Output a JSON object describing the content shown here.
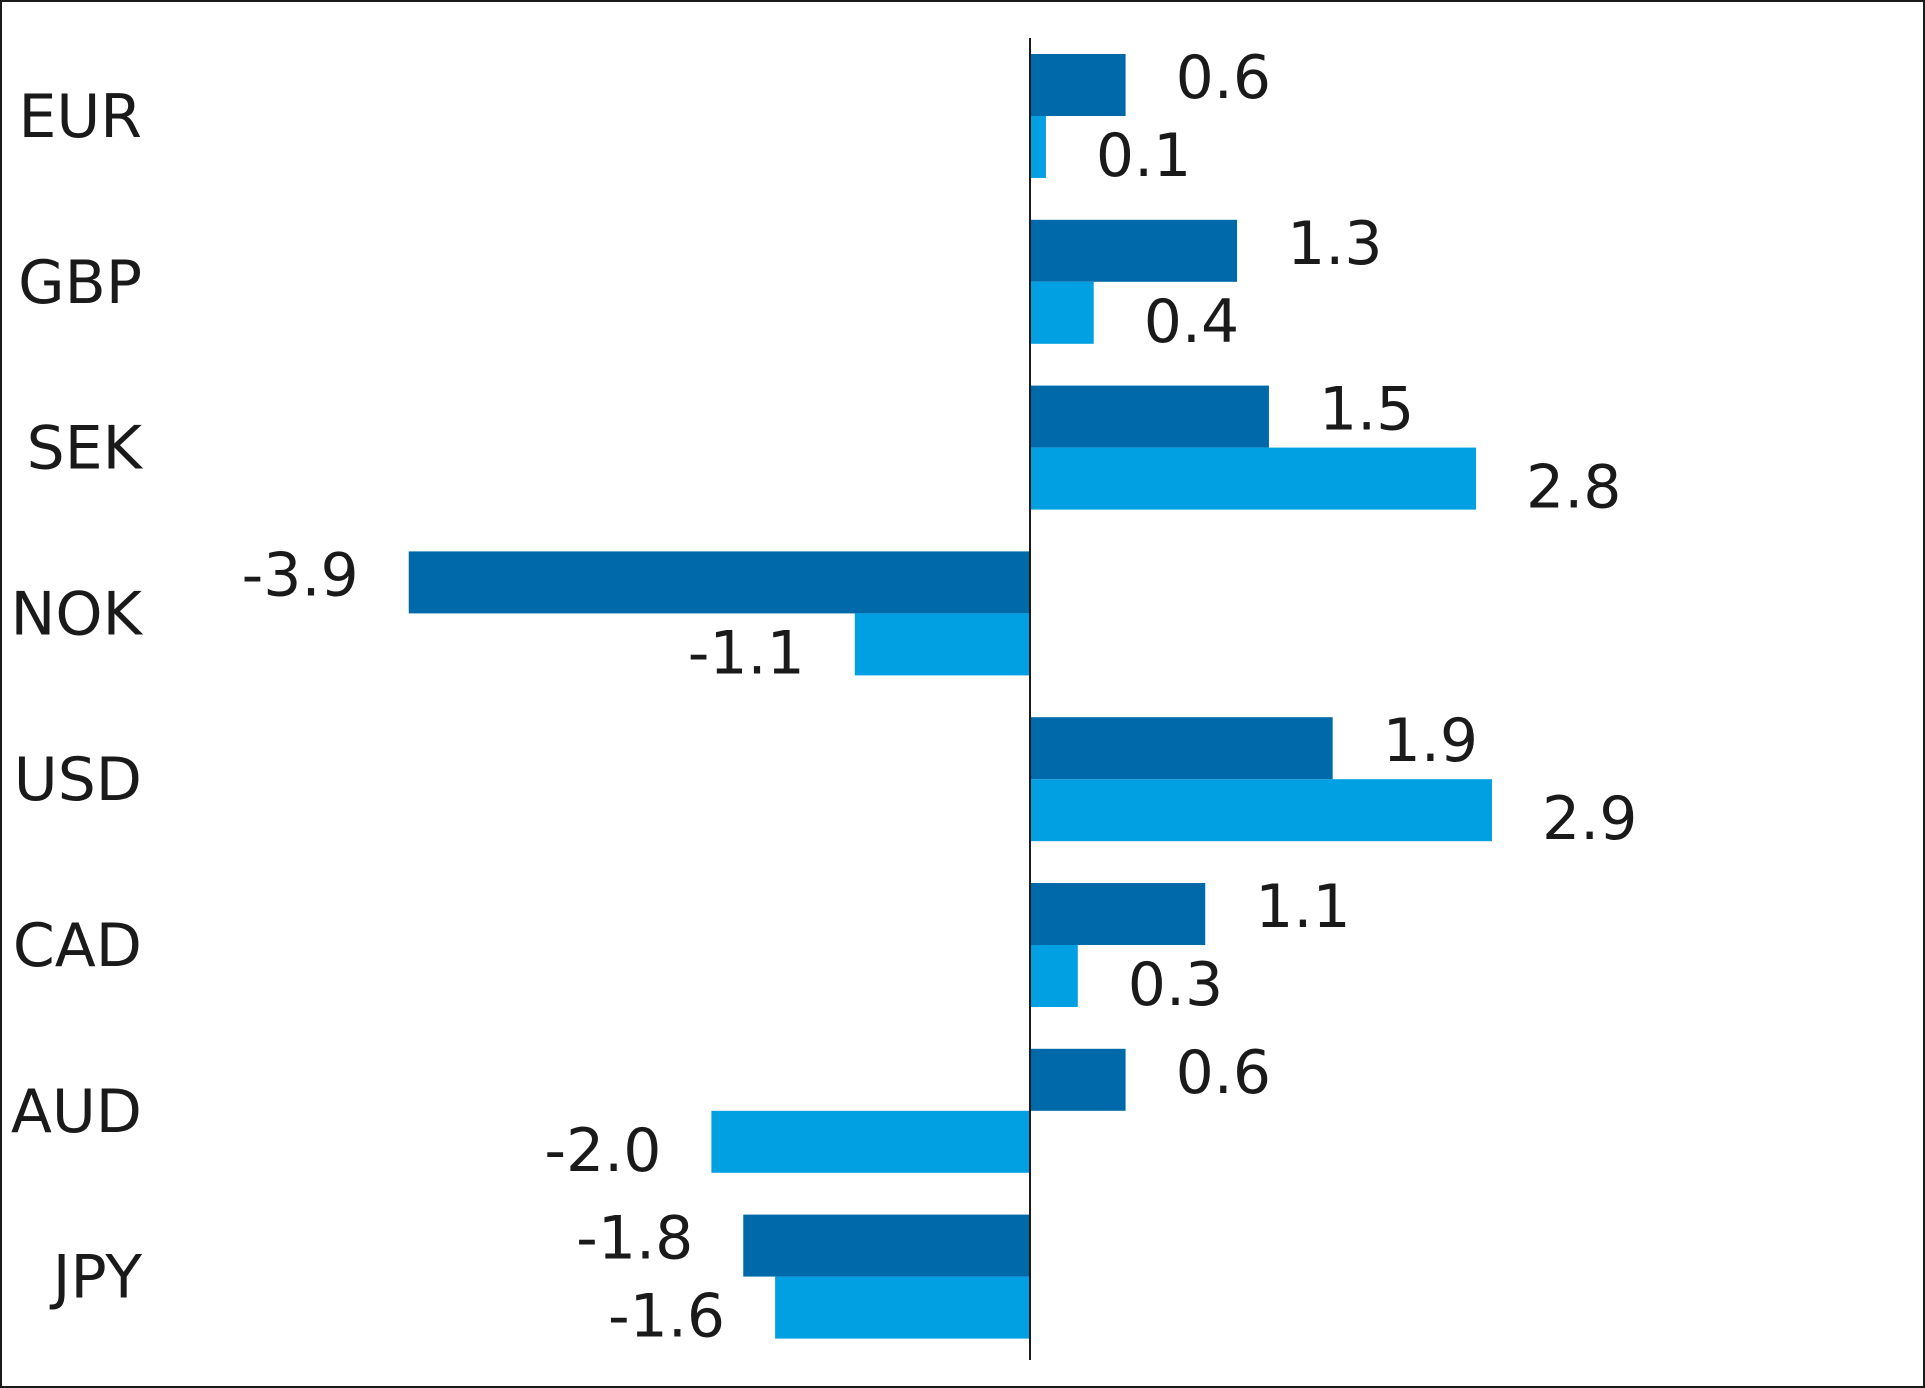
{
  "chart_data": {
    "type": "bar",
    "orientation": "horizontal",
    "categories": [
      "EUR",
      "GBP",
      "SEK",
      "NOK",
      "USD",
      "CAD",
      "AUD",
      "JPY"
    ],
    "series": [
      {
        "color": "#0069aa",
        "values": [
          0.6,
          1.3,
          1.5,
          -3.9,
          1.9,
          1.1,
          0.6,
          -1.8
        ],
        "labels": [
          "0.6",
          "1.3",
          "1.5",
          "-3.9",
          "1.9",
          "1.1",
          "0.6",
          "-1.8"
        ]
      },
      {
        "color": "#00a0e3",
        "values": [
          0.1,
          0.4,
          2.8,
          -1.1,
          2.9,
          0.3,
          -2.0,
          -1.6
        ],
        "labels": [
          "0.1",
          "0.4",
          "2.8",
          "-1.1",
          "2.9",
          "0.3",
          "-2.0",
          "-1.6"
        ]
      }
    ],
    "xlim": [
      -4.7,
      5.3
    ],
    "grid": false,
    "legend": "none",
    "title": "",
    "xlabel": "",
    "ylabel": ""
  }
}
